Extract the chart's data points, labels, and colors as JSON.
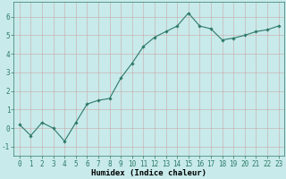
{
  "x": [
    0,
    1,
    2,
    3,
    4,
    5,
    6,
    7,
    8,
    9,
    10,
    11,
    12,
    13,
    14,
    15,
    16,
    17,
    18,
    19,
    20,
    21,
    22,
    23
  ],
  "y": [
    0.2,
    -0.4,
    0.3,
    0.0,
    -0.7,
    0.3,
    1.3,
    1.5,
    1.6,
    2.7,
    3.5,
    4.4,
    4.9,
    5.2,
    5.5,
    6.2,
    5.5,
    5.35,
    4.75,
    4.85,
    5.0,
    5.2,
    5.3,
    5.5
  ],
  "line_color": "#2d7a6a",
  "marker": "D",
  "marker_size": 1.8,
  "line_width": 0.8,
  "xlabel": "Humidex (Indice chaleur)",
  "xlabel_fontsize": 6.5,
  "xlim": [
    -0.5,
    23.5
  ],
  "ylim": [
    -1.5,
    6.8
  ],
  "yticks": [
    -1,
    0,
    1,
    2,
    3,
    4,
    5,
    6
  ],
  "xticks": [
    0,
    1,
    2,
    3,
    4,
    5,
    6,
    7,
    8,
    9,
    10,
    11,
    12,
    13,
    14,
    15,
    16,
    17,
    18,
    19,
    20,
    21,
    22,
    23
  ],
  "background_color": "#c8eaea",
  "grid_color_h": "#c8a8a8",
  "grid_color_v": "#c8a8a8",
  "tick_fontsize": 5.5,
  "figsize": [
    3.2,
    2.0
  ],
  "dpi": 100
}
